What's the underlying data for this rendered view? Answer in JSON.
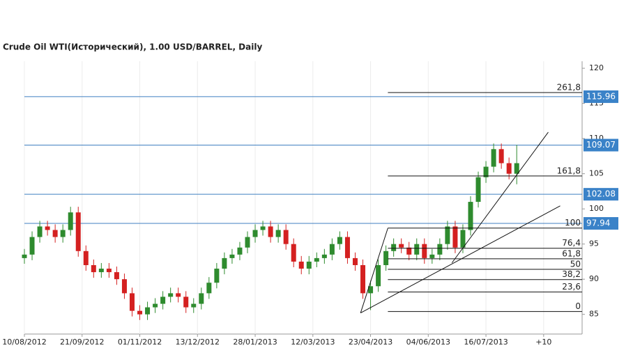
{
  "chart_data": {
    "type": "candlestick",
    "title": "Crude Oil WTI(Исторический), 1.00 USD/BARREL, Daily",
    "up_color": "#2e8b2e",
    "down_color": "#d42020",
    "xlim": [
      0,
      290
    ],
    "ylim": [
      82.2,
      121
    ],
    "yticks": [
      85,
      90,
      95,
      100,
      105,
      110,
      115,
      120
    ],
    "xticks": [
      {
        "value": 0,
        "label": "10/08/2012"
      },
      {
        "value": 30,
        "label": "21/09/2012"
      },
      {
        "value": 60,
        "label": "01/11/2012"
      },
      {
        "value": 90,
        "label": "13/12/2012"
      },
      {
        "value": 120,
        "label": "28/01/2013"
      },
      {
        "value": 150,
        "label": "12/03/2013"
      },
      {
        "value": 180,
        "label": "23/04/2013"
      },
      {
        "value": 210,
        "label": "04/06/2013"
      },
      {
        "value": 240,
        "label": "16/07/2013"
      },
      {
        "value": 270,
        "label": "+10"
      }
    ],
    "x": [
      0,
      4,
      8,
      12,
      16,
      20,
      24,
      28,
      32,
      36,
      40,
      44,
      48,
      52,
      56,
      60,
      64,
      68,
      72,
      76,
      80,
      84,
      88,
      92,
      96,
      100,
      104,
      108,
      112,
      116,
      120,
      124,
      128,
      132,
      136,
      140,
      144,
      148,
      152,
      156,
      160,
      164,
      168,
      172,
      176,
      180,
      184,
      188,
      192,
      196,
      200,
      204,
      208,
      212,
      216,
      220,
      224,
      228,
      232,
      236,
      240,
      244,
      248,
      252,
      256
    ],
    "open": [
      93,
      93.5,
      96,
      97.5,
      97,
      96,
      97,
      99.5,
      94,
      92,
      91,
      91.5,
      91,
      90,
      88,
      85.5,
      85,
      86,
      86.5,
      87.5,
      88,
      87.5,
      86,
      86.5,
      88,
      89.5,
      91.5,
      93,
      93.5,
      94.5,
      96,
      97,
      97.5,
      96,
      97,
      95,
      92.5,
      91.5,
      92.5,
      93,
      93.5,
      95,
      96,
      93,
      92,
      88,
      89,
      92,
      94,
      95,
      94.5,
      93.5,
      95,
      93,
      93.5,
      95,
      97.5,
      94.5,
      97,
      101,
      104.5,
      106,
      108.5,
      106.5,
      105
    ],
    "high": [
      94.3,
      96.8,
      98.3,
      98.3,
      97.8,
      97.8,
      100.3,
      100.3,
      94.8,
      92.8,
      92.3,
      92.3,
      91.8,
      90.8,
      88.8,
      86.3,
      86.8,
      87.3,
      88.3,
      88.8,
      88.8,
      88.3,
      87.3,
      88.8,
      90.3,
      92.3,
      93.8,
      94.3,
      95.3,
      96.8,
      97.8,
      98.3,
      98.3,
      97.8,
      97.8,
      95.8,
      93.3,
      93.3,
      93.8,
      94.3,
      95.8,
      96.8,
      96.8,
      93.8,
      92.8,
      89.8,
      92.8,
      94.8,
      95.8,
      95.8,
      95.3,
      95.8,
      95.8,
      94.3,
      95.8,
      98.3,
      98.3,
      97.8,
      101.8,
      105.3,
      106.8,
      109.3,
      109.3,
      107.3,
      109.1
    ],
    "low": [
      92.2,
      92.7,
      95.2,
      96.2,
      95.2,
      95.2,
      96.2,
      93.2,
      91.2,
      90.2,
      90.2,
      90.2,
      89.2,
      87.2,
      84.7,
      84.2,
      84.2,
      85.2,
      85.7,
      86.7,
      86.7,
      85.2,
      85.2,
      85.7,
      87.2,
      88.7,
      90.7,
      92.2,
      92.7,
      93.7,
      95.2,
      96.2,
      95.2,
      95.2,
      94.2,
      91.7,
      90.7,
      90.7,
      91.7,
      92.2,
      92.7,
      94.2,
      92.2,
      91.2,
      87.2,
      85.6,
      88.2,
      91.2,
      93.2,
      93.7,
      92.7,
      92.7,
      92.2,
      92.2,
      92.7,
      94.2,
      93.7,
      93.7,
      96.2,
      100.2,
      103.7,
      105.2,
      105.7,
      104.2,
      103.5
    ],
    "close": [
      93.5,
      96,
      97.5,
      97,
      96,
      97,
      99.5,
      94,
      92,
      91,
      91.5,
      91,
      90,
      88,
      85.5,
      85,
      86,
      86.5,
      87.5,
      88,
      87.5,
      86,
      86.5,
      88,
      89.5,
      91.5,
      93,
      93.5,
      94.5,
      96,
      97,
      97.5,
      96,
      97,
      95,
      92.5,
      91.5,
      92.5,
      93,
      93.5,
      95,
      96,
      93,
      92,
      88,
      89,
      92,
      94,
      95,
      94.5,
      93.5,
      95,
      93,
      93.5,
      95,
      97.5,
      94.5,
      97,
      101,
      104.5,
      106,
      108.5,
      106.5,
      105,
      106.5
    ],
    "levels": [
      115.96,
      109.07,
      102.08,
      97.94
    ],
    "fib_start": 189,
    "fib": [
      {
        "level": "261,8",
        "price": 116.55
      },
      {
        "level": "161,8",
        "price": 104.68
      },
      {
        "level": "100",
        "price": 97.27
      },
      {
        "level": "76,4",
        "price": 94.4
      },
      {
        "level": "61,8",
        "price": 92.9
      },
      {
        "level": "50",
        "price": 91.4
      },
      {
        "level": "38,2",
        "price": 89.95
      },
      {
        "level": "23,6",
        "price": 88.17
      },
      {
        "level": "0",
        "price": 85.4
      }
    ],
    "trendlines": [
      [
        [
          174.8,
          85.2
        ],
        [
          189,
          97.27
        ]
      ],
      [
        [
          174.8,
          85.2
        ],
        [
          278.6,
          100.43
        ]
      ],
      [
        [
          222.3,
          92.32
        ],
        [
          272.4,
          110.91
        ]
      ]
    ]
  }
}
